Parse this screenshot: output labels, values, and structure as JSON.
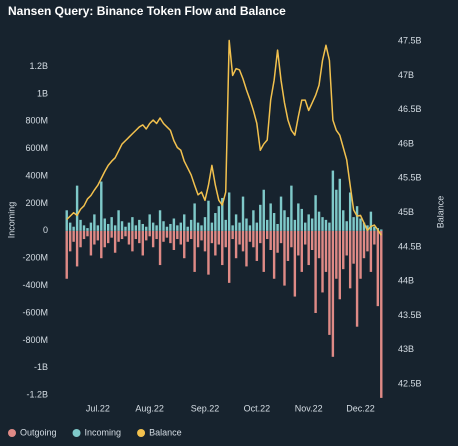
{
  "chart_data": {
    "type": "bar",
    "title": "Nansen Query: Binance Token Flow and Balance",
    "y_label": "Incoming",
    "y2_label": "Balance",
    "categories": [
      null,
      null,
      null,
      null,
      null,
      null,
      null,
      null,
      null,
      "Jul.22",
      null,
      null,
      null,
      null,
      null,
      null,
      null,
      null,
      null,
      null,
      null,
      null,
      null,
      null,
      "Aug.22",
      null,
      null,
      null,
      null,
      null,
      null,
      null,
      null,
      null,
      null,
      null,
      null,
      null,
      null,
      null,
      "Sep.22",
      null,
      null,
      null,
      null,
      null,
      null,
      null,
      null,
      null,
      null,
      null,
      null,
      null,
      null,
      "Oct.22",
      null,
      null,
      null,
      null,
      null,
      null,
      null,
      null,
      null,
      null,
      null,
      null,
      null,
      null,
      "Nov.22",
      null,
      null,
      null,
      null,
      null,
      null,
      null,
      null,
      null,
      null,
      null,
      null,
      null,
      null,
      "Dec.22",
      null,
      null,
      null,
      null,
      null,
      null
    ],
    "ylim": [
      -1250,
      1430
    ],
    "yticks": [
      {
        "value": -1200,
        "label": "-1.2B"
      },
      {
        "value": -1000,
        "label": "-1B"
      },
      {
        "value": -800,
        "label": "-800M"
      },
      {
        "value": -600,
        "label": "-600M"
      },
      {
        "value": -400,
        "label": "-400M"
      },
      {
        "value": -200,
        "label": "-200M"
      },
      0,
      {
        "value": 200,
        "label": "200M"
      },
      {
        "value": 400,
        "label": "400M"
      },
      {
        "value": 600,
        "label": "600M"
      },
      {
        "value": 800,
        "label": "800M"
      },
      {
        "value": 1000,
        "label": "1B"
      },
      {
        "value": 1200,
        "label": "1.2B"
      }
    ],
    "y2lim": [
      42.24,
      47.59
    ],
    "y2ticks": [
      {
        "value": 42.5,
        "label": "42.5B"
      },
      {
        "value": 43,
        "label": "43B"
      },
      {
        "value": 43.5,
        "label": "43.5B"
      },
      {
        "value": 44,
        "label": "44B"
      },
      {
        "value": 44.5,
        "label": "44.5B"
      },
      {
        "value": 45,
        "label": "45B"
      },
      {
        "value": 45.5,
        "label": "45.5B"
      },
      {
        "value": 46,
        "label": "46B"
      },
      {
        "value": 46.5,
        "label": "46.5B"
      },
      {
        "value": 47,
        "label": "47B"
      },
      {
        "value": 47.5,
        "label": "47.5B"
      }
    ],
    "legend": "bottom-left",
    "series": [
      {
        "name": "Outgoing",
        "color": "#df8a86",
        "type": "bar",
        "values": [
          -350,
          -150,
          -80,
          -260,
          -120,
          -60,
          -40,
          -180,
          -100,
          -70,
          -200,
          -120,
          -90,
          -50,
          -160,
          -80,
          -60,
          -40,
          -100,
          -150,
          -60,
          -90,
          -180,
          -70,
          -40,
          -120,
          -60,
          -250,
          -80,
          -50,
          -90,
          -140,
          -60,
          -100,
          -200,
          -80,
          -60,
          -300,
          -120,
          -70,
          -150,
          -320,
          -90,
          -180,
          -100,
          -250,
          -120,
          -380,
          -60,
          -200,
          -100,
          -150,
          -260,
          -80,
          -120,
          -220,
          -90,
          -300,
          -60,
          -140,
          -350,
          -160,
          -90,
          -400,
          -220,
          -120,
          -480,
          -180,
          -300,
          -100,
          -250,
          -140,
          -600,
          -200,
          -450,
          -300,
          -760,
          -920,
          -350,
          -500,
          -280,
          -180,
          -420,
          -240,
          -700,
          -350,
          -200,
          -150,
          -300,
          -100,
          -550,
          -1220
        ]
      },
      {
        "name": "Incoming",
        "color": "#7fc9c9",
        "type": "bar",
        "values": [
          150,
          60,
          30,
          330,
          80,
          40,
          20,
          60,
          120,
          40,
          360,
          90,
          50,
          100,
          40,
          150,
          70,
          30,
          60,
          100,
          40,
          80,
          50,
          30,
          120,
          60,
          40,
          150,
          70,
          30,
          50,
          90,
          40,
          60,
          120,
          30,
          80,
          200,
          60,
          40,
          100,
          220,
          60,
          130,
          180,
          240,
          80,
          280,
          40,
          120,
          60,
          250,
          90,
          40,
          150,
          60,
          190,
          300,
          80,
          200,
          130,
          50,
          250,
          150,
          100,
          330,
          80,
          200,
          160,
          60,
          120,
          90,
          260,
          140,
          100,
          80,
          60,
          440,
          300,
          380,
          150,
          70,
          280,
          100,
          180,
          90,
          60,
          40,
          140,
          30,
          20,
          10
        ]
      },
      {
        "name": "Balance",
        "color": "#f2c14e",
        "type": "line",
        "axis": "y2",
        "values": [
          44.9,
          44.95,
          45.0,
          44.96,
          45.05,
          45.1,
          45.2,
          45.25,
          45.33,
          45.4,
          45.5,
          45.6,
          45.69,
          45.75,
          45.8,
          45.9,
          46.0,
          46.05,
          46.1,
          46.15,
          46.2,
          46.25,
          46.28,
          46.22,
          46.3,
          46.35,
          46.3,
          46.38,
          46.3,
          46.25,
          46.2,
          46.05,
          45.95,
          45.91,
          45.75,
          45.65,
          45.55,
          45.4,
          45.26,
          45.3,
          45.18,
          45.4,
          45.69,
          45.4,
          45.18,
          45.11,
          45.3,
          47.51,
          47.0,
          47.1,
          47.08,
          46.95,
          46.79,
          46.65,
          46.49,
          46.3,
          45.91,
          46.0,
          46.06,
          46.64,
          46.93,
          47.37,
          46.93,
          46.6,
          46.35,
          46.2,
          46.13,
          46.4,
          46.64,
          46.64,
          46.49,
          46.6,
          46.71,
          46.86,
          47.22,
          47.44,
          47.22,
          46.35,
          46.2,
          46.13,
          45.95,
          45.77,
          45.4,
          45.04,
          44.95,
          44.96,
          44.85,
          44.74,
          44.8,
          44.82,
          44.75,
          44.67
        ]
      }
    ]
  }
}
